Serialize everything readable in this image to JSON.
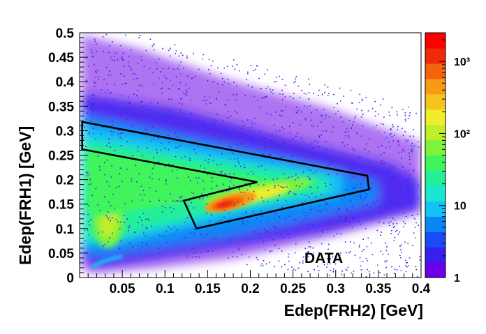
{
  "chart_data": {
    "type": "heatmap",
    "title": "",
    "xlabel": "Edep(FRH2) [GeV]",
    "ylabel": "Edep(FRH1) [GeV]",
    "xlim": [
      0,
      0.4
    ],
    "ylim": [
      0,
      0.5
    ],
    "x_ticks": [
      "0.05",
      "0.1",
      "0.15",
      "0.2",
      "0.25",
      "0.3",
      "0.35",
      "0.4"
    ],
    "y_ticks": [
      "0",
      "0.05",
      "0.1",
      "0.15",
      "0.2",
      "0.25",
      "0.3",
      "0.35",
      "0.4",
      "0.45",
      "0.5"
    ],
    "x_tick_values": [
      0.05,
      0.1,
      0.15,
      0.2,
      0.25,
      0.3,
      0.35,
      0.4
    ],
    "y_tick_values": [
      0,
      0.05,
      0.1,
      0.15,
      0.2,
      0.25,
      0.3,
      0.35,
      0.4,
      0.45,
      0.5
    ],
    "colorbar": {
      "scale": "log",
      "range": [
        1,
        2500
      ],
      "tick_labels": [
        "1",
        "10",
        "10²",
        "10³"
      ],
      "tick_values": [
        1,
        10,
        100,
        1000
      ],
      "palette": [
        "#6a00e6",
        "#3a1ef0",
        "#1a4cf5",
        "#0a86f5",
        "#12c3f5",
        "#1de6d0",
        "#22ef99",
        "#3ff55b",
        "#7ff23a",
        "#bfef2a",
        "#f0ee2a",
        "#f7c41f",
        "#f79a16",
        "#f2640e",
        "#ee2a0a",
        "#ff0000"
      ]
    },
    "annotation": "DATA",
    "cut_polygon": [
      [
        0.003,
        0.318
      ],
      [
        0.337,
        0.208
      ],
      [
        0.339,
        0.18
      ],
      [
        0.137,
        0.1
      ],
      [
        0.122,
        0.157
      ],
      [
        0.208,
        0.195
      ],
      [
        0.003,
        0.262
      ]
    ],
    "density_features": [
      {
        "name": "peak",
        "x": 0.17,
        "y": 0.152,
        "counts": 2500
      },
      {
        "name": "main band",
        "x_range": [
          0.0,
          0.33
        ],
        "y_range": [
          0.14,
          0.32
        ],
        "counts": 100
      },
      {
        "name": "lower band",
        "x_range": [
          0.13,
          0.33
        ],
        "y_range": [
          0.1,
          0.19
        ],
        "counts": 300
      },
      {
        "name": "low-energy blob",
        "x": 0.035,
        "y": 0.105,
        "counts": 150
      }
    ]
  }
}
